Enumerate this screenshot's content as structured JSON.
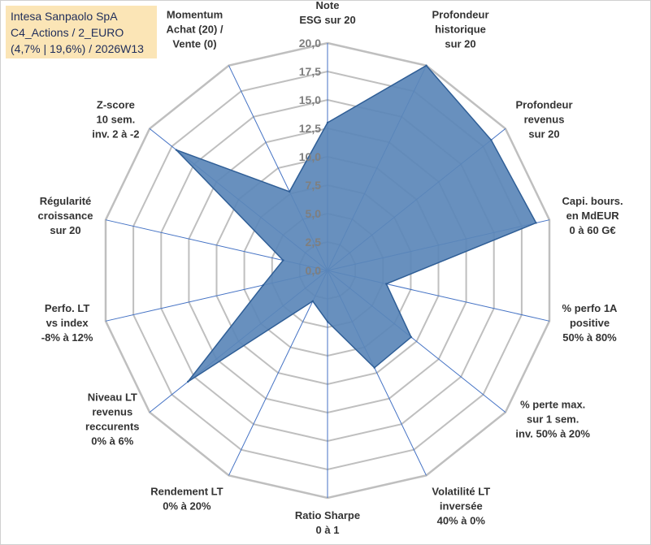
{
  "title_box": {
    "line1": "Intesa Sanpaolo SpA",
    "line2": "C4_Actions / 2_EURO",
    "line3": "(4,7% | 19,6%) / 2026W13"
  },
  "colors": {
    "fill": "#5b87b8",
    "stroke": "#2f5e96",
    "grid": "#bfbfbf",
    "spoke": "#4472c4",
    "title_bg": "#fbe5b6"
  },
  "chart_data": {
    "type": "radar",
    "title": "Intesa Sanpaolo SpA",
    "rmin": 0,
    "rmax": 20,
    "tick_step": 2.5,
    "tick_labels": [
      "0,0",
      "2,5",
      "5,0",
      "7,5",
      "10,0",
      "12,5",
      "15,0",
      "17,5",
      "20,0"
    ],
    "categories": [
      {
        "label": [
          "Note",
          "ESG sur 20"
        ]
      },
      {
        "label": [
          "Profondeur",
          "historique",
          "sur 20"
        ]
      },
      {
        "label": [
          "Profondeur",
          "revenus",
          "sur 20"
        ]
      },
      {
        "label": [
          "Capi. bours.",
          "en MdEUR",
          "0 à 60 G€"
        ]
      },
      {
        "label": [
          "% perfo 1A",
          "positive",
          "50% à 80%"
        ]
      },
      {
        "label": [
          "% perte max.",
          "sur 1 sem.",
          "inv. 50% à 20%"
        ]
      },
      {
        "label": [
          "Volatilité LT",
          "inversée",
          "40% à 0%"
        ]
      },
      {
        "label": [
          "Ratio Sharpe",
          "0 à 1"
        ]
      },
      {
        "label": [
          "Rendement LT",
          "0% à 20%"
        ]
      },
      {
        "label": [
          "Niveau LT",
          "revenus",
          "reccurents",
          "0% à 6%"
        ]
      },
      {
        "label": [
          "Perfo. LT",
          "vs index",
          "-8% à 12%"
        ]
      },
      {
        "label": [
          "Régularité",
          "croissance",
          "sur 20"
        ]
      },
      {
        "label": [
          "Z-score",
          "10 sem.",
          "inv. 2 à -2"
        ]
      },
      {
        "label": [
          "Momentum",
          "Achat (20) /",
          "Vente (0)"
        ]
      }
    ],
    "series": [
      {
        "name": "Intesa Sanpaolo SpA",
        "values": [
          13.0,
          20.0,
          18.4,
          18.8,
          5.3,
          9.4,
          9.5,
          4.5,
          3.0,
          15.7,
          5.8,
          4.0,
          17.0,
          7.7
        ]
      }
    ]
  }
}
